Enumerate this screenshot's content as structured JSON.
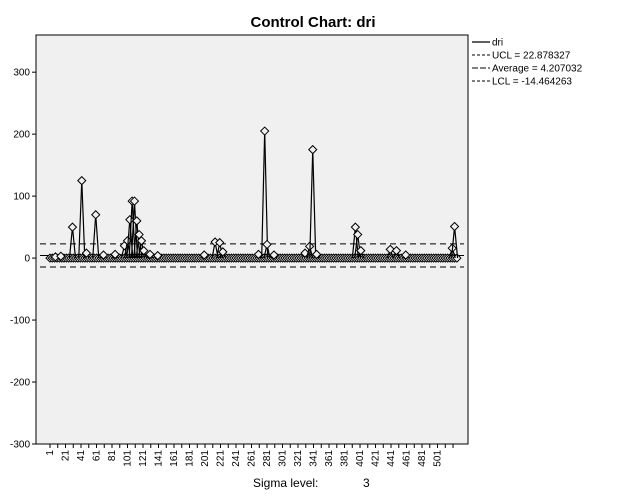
{
  "chart_data": {
    "type": "line",
    "title": "Control Chart: dri",
    "xlabel": "",
    "ylabel": "",
    "xlim": [
      1,
      530
    ],
    "ylim": [
      -300,
      360
    ],
    "y_ticks": [
      -300,
      -200,
      -100,
      0,
      100,
      200,
      300
    ],
    "x_ticks": [
      "1",
      "21",
      "41",
      "61",
      "81",
      "101",
      "121",
      "141",
      "161",
      "181",
      "201",
      "221",
      "241",
      "261",
      "281",
      "301",
      "321",
      "341",
      "361",
      "381",
      "401",
      "421",
      "441",
      "461",
      "481",
      "501"
    ],
    "control_limits": {
      "ucl": 22.878327,
      "average": 4.207032,
      "lcl": -14.464263
    },
    "legend": {
      "placement": "right",
      "entries": [
        "dri",
        "UCL = 22.878327",
        "Average = 4.207032",
        "LCL = -14.464263"
      ]
    },
    "series": [
      {
        "name": "dri",
        "spikes": [
          {
            "x": 8,
            "y": 2
          },
          {
            "x": 15,
            "y": 3
          },
          {
            "x": 30,
            "y": 50
          },
          {
            "x": 42,
            "y": 125
          },
          {
            "x": 48,
            "y": 8
          },
          {
            "x": 60,
            "y": 70
          },
          {
            "x": 70,
            "y": 5
          },
          {
            "x": 85,
            "y": 6
          },
          {
            "x": 97,
            "y": 20
          },
          {
            "x": 101,
            "y": 28
          },
          {
            "x": 104,
            "y": 62
          },
          {
            "x": 107,
            "y": 92
          },
          {
            "x": 110,
            "y": 92
          },
          {
            "x": 113,
            "y": 60
          },
          {
            "x": 116,
            "y": 38
          },
          {
            "x": 119,
            "y": 28
          },
          {
            "x": 122,
            "y": 12
          },
          {
            "x": 130,
            "y": 6
          },
          {
            "x": 140,
            "y": 4
          },
          {
            "x": 200,
            "y": 5
          },
          {
            "x": 214,
            "y": 26
          },
          {
            "x": 220,
            "y": 25
          },
          {
            "x": 224,
            "y": 10
          },
          {
            "x": 270,
            "y": 6
          },
          {
            "x": 278,
            "y": 205
          },
          {
            "x": 281,
            "y": 22
          },
          {
            "x": 290,
            "y": 5
          },
          {
            "x": 330,
            "y": 8
          },
          {
            "x": 336,
            "y": 19
          },
          {
            "x": 340,
            "y": 175
          },
          {
            "x": 345,
            "y": 6
          },
          {
            "x": 395,
            "y": 50
          },
          {
            "x": 398,
            "y": 38
          },
          {
            "x": 402,
            "y": 12
          },
          {
            "x": 440,
            "y": 14
          },
          {
            "x": 448,
            "y": 12
          },
          {
            "x": 460,
            "y": 5
          },
          {
            "x": 520,
            "y": 16
          },
          {
            "x": 523,
            "y": 51
          }
        ],
        "baseline": 0
      }
    ]
  },
  "footer": {
    "label": "Sigma level:",
    "value": "3"
  }
}
